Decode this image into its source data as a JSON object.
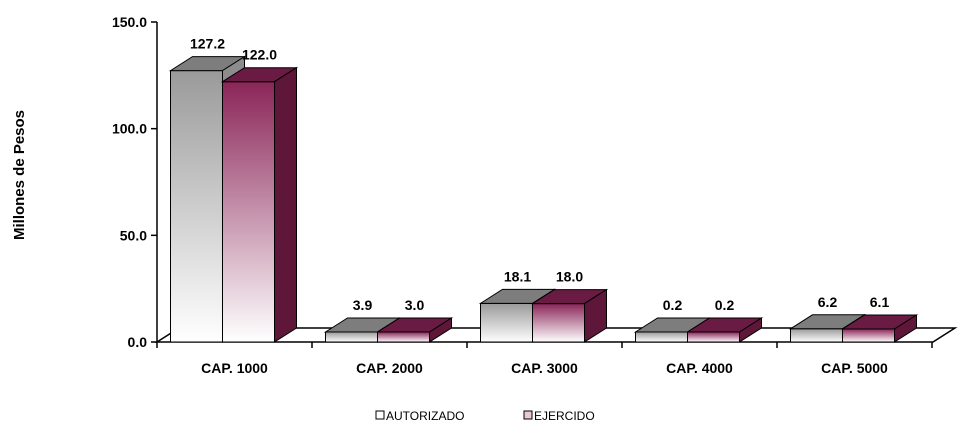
{
  "chart_data": {
    "type": "bar",
    "style": "3d-clustered-column",
    "ylabel": "Millones de Pesos",
    "ylim": [
      0,
      150
    ],
    "yticks": [
      "0.0",
      "50.0",
      "100.0",
      "150.0"
    ],
    "categories": [
      "CAP. 1000",
      "CAP. 2000",
      "CAP. 3000",
      "CAP. 4000",
      "CAP. 5000"
    ],
    "series": [
      {
        "name": "AUTORIZADO",
        "values": [
          127.2,
          3.9,
          18.1,
          0.2,
          6.2
        ],
        "labels": [
          "127.2",
          "3.9",
          "18.1",
          "0.2",
          "6.2"
        ],
        "color": "#9a9a9a"
      },
      {
        "name": "EJERCIDO",
        "values": [
          122.0,
          3.0,
          18.0,
          0.2,
          6.1
        ],
        "labels": [
          "122.0",
          "3.0",
          "18.0",
          "0.2",
          "6.1"
        ],
        "color": "#7a1f4f"
      }
    ],
    "legend": "bottom",
    "grid": false
  }
}
